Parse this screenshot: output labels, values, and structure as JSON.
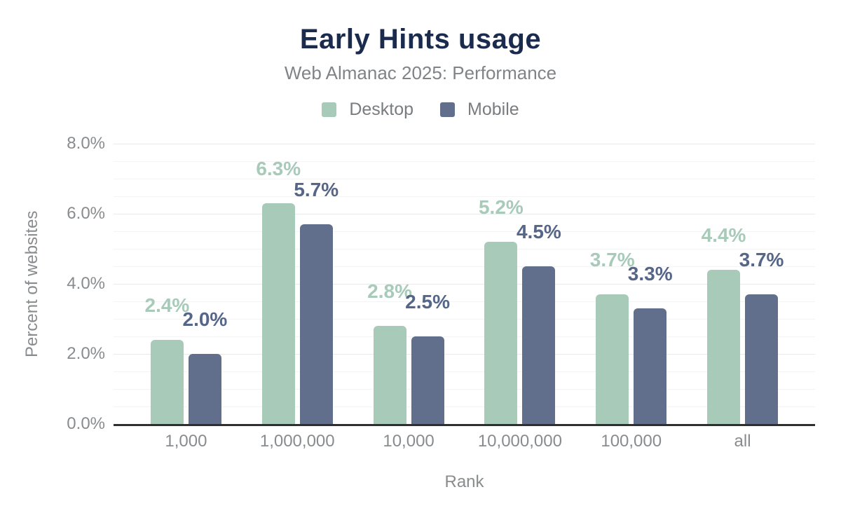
{
  "title": "Early Hints usage",
  "subtitle": "Web Almanac 2025: Performance",
  "legend": {
    "items": [
      {
        "label": "Desktop",
        "color": "#a7cab9"
      },
      {
        "label": "Mobile",
        "color": "#616f8c"
      }
    ]
  },
  "y_axis": {
    "title": "Percent of websites",
    "ticks": [
      {
        "label": "8.0%",
        "value": 8
      },
      {
        "label": "6.0%",
        "value": 6
      },
      {
        "label": "4.0%",
        "value": 4
      },
      {
        "label": "2.0%",
        "value": 2
      },
      {
        "label": "0.0%",
        "value": 0
      }
    ]
  },
  "x_axis": {
    "title": "Rank"
  },
  "chart_data": {
    "type": "bar",
    "title": "Early Hints usage",
    "subtitle": "Web Almanac 2025: Performance",
    "xlabel": "Rank",
    "ylabel": "Percent of websites",
    "ylim": [
      0,
      8
    ],
    "y_tick_step": 2,
    "y_minor_gridline_step": 0.5,
    "grid": true,
    "legend_position": "top",
    "categories": [
      "1,000",
      "1,000,000",
      "10,000",
      "10,000,000",
      "100,000",
      "all"
    ],
    "series": [
      {
        "name": "Desktop",
        "color": "#a7cab9",
        "label_color": "#a7cab9",
        "values": [
          2.4,
          6.3,
          2.8,
          5.2,
          3.7,
          4.4
        ],
        "labels": [
          "2.4%",
          "6.3%",
          "2.8%",
          "5.2%",
          "3.7%",
          "4.4%"
        ]
      },
      {
        "name": "Mobile",
        "color": "#616f8c",
        "label_color": "#556689",
        "values": [
          2.0,
          5.7,
          2.5,
          4.5,
          3.3,
          3.7
        ],
        "labels": [
          "2.0%",
          "5.7%",
          "2.5%",
          "4.5%",
          "3.3%",
          "3.7%"
        ]
      }
    ]
  },
  "colors": {
    "title": "#1a2b4e",
    "subtitle": "#808487",
    "axis_text": "#898c8e",
    "legend_text": "#797d80",
    "gridline_major": "#e9e9e9",
    "gridline_minor": "#f4f4f4",
    "axis_line": "#2f2f2f",
    "background": "#ffffff"
  }
}
